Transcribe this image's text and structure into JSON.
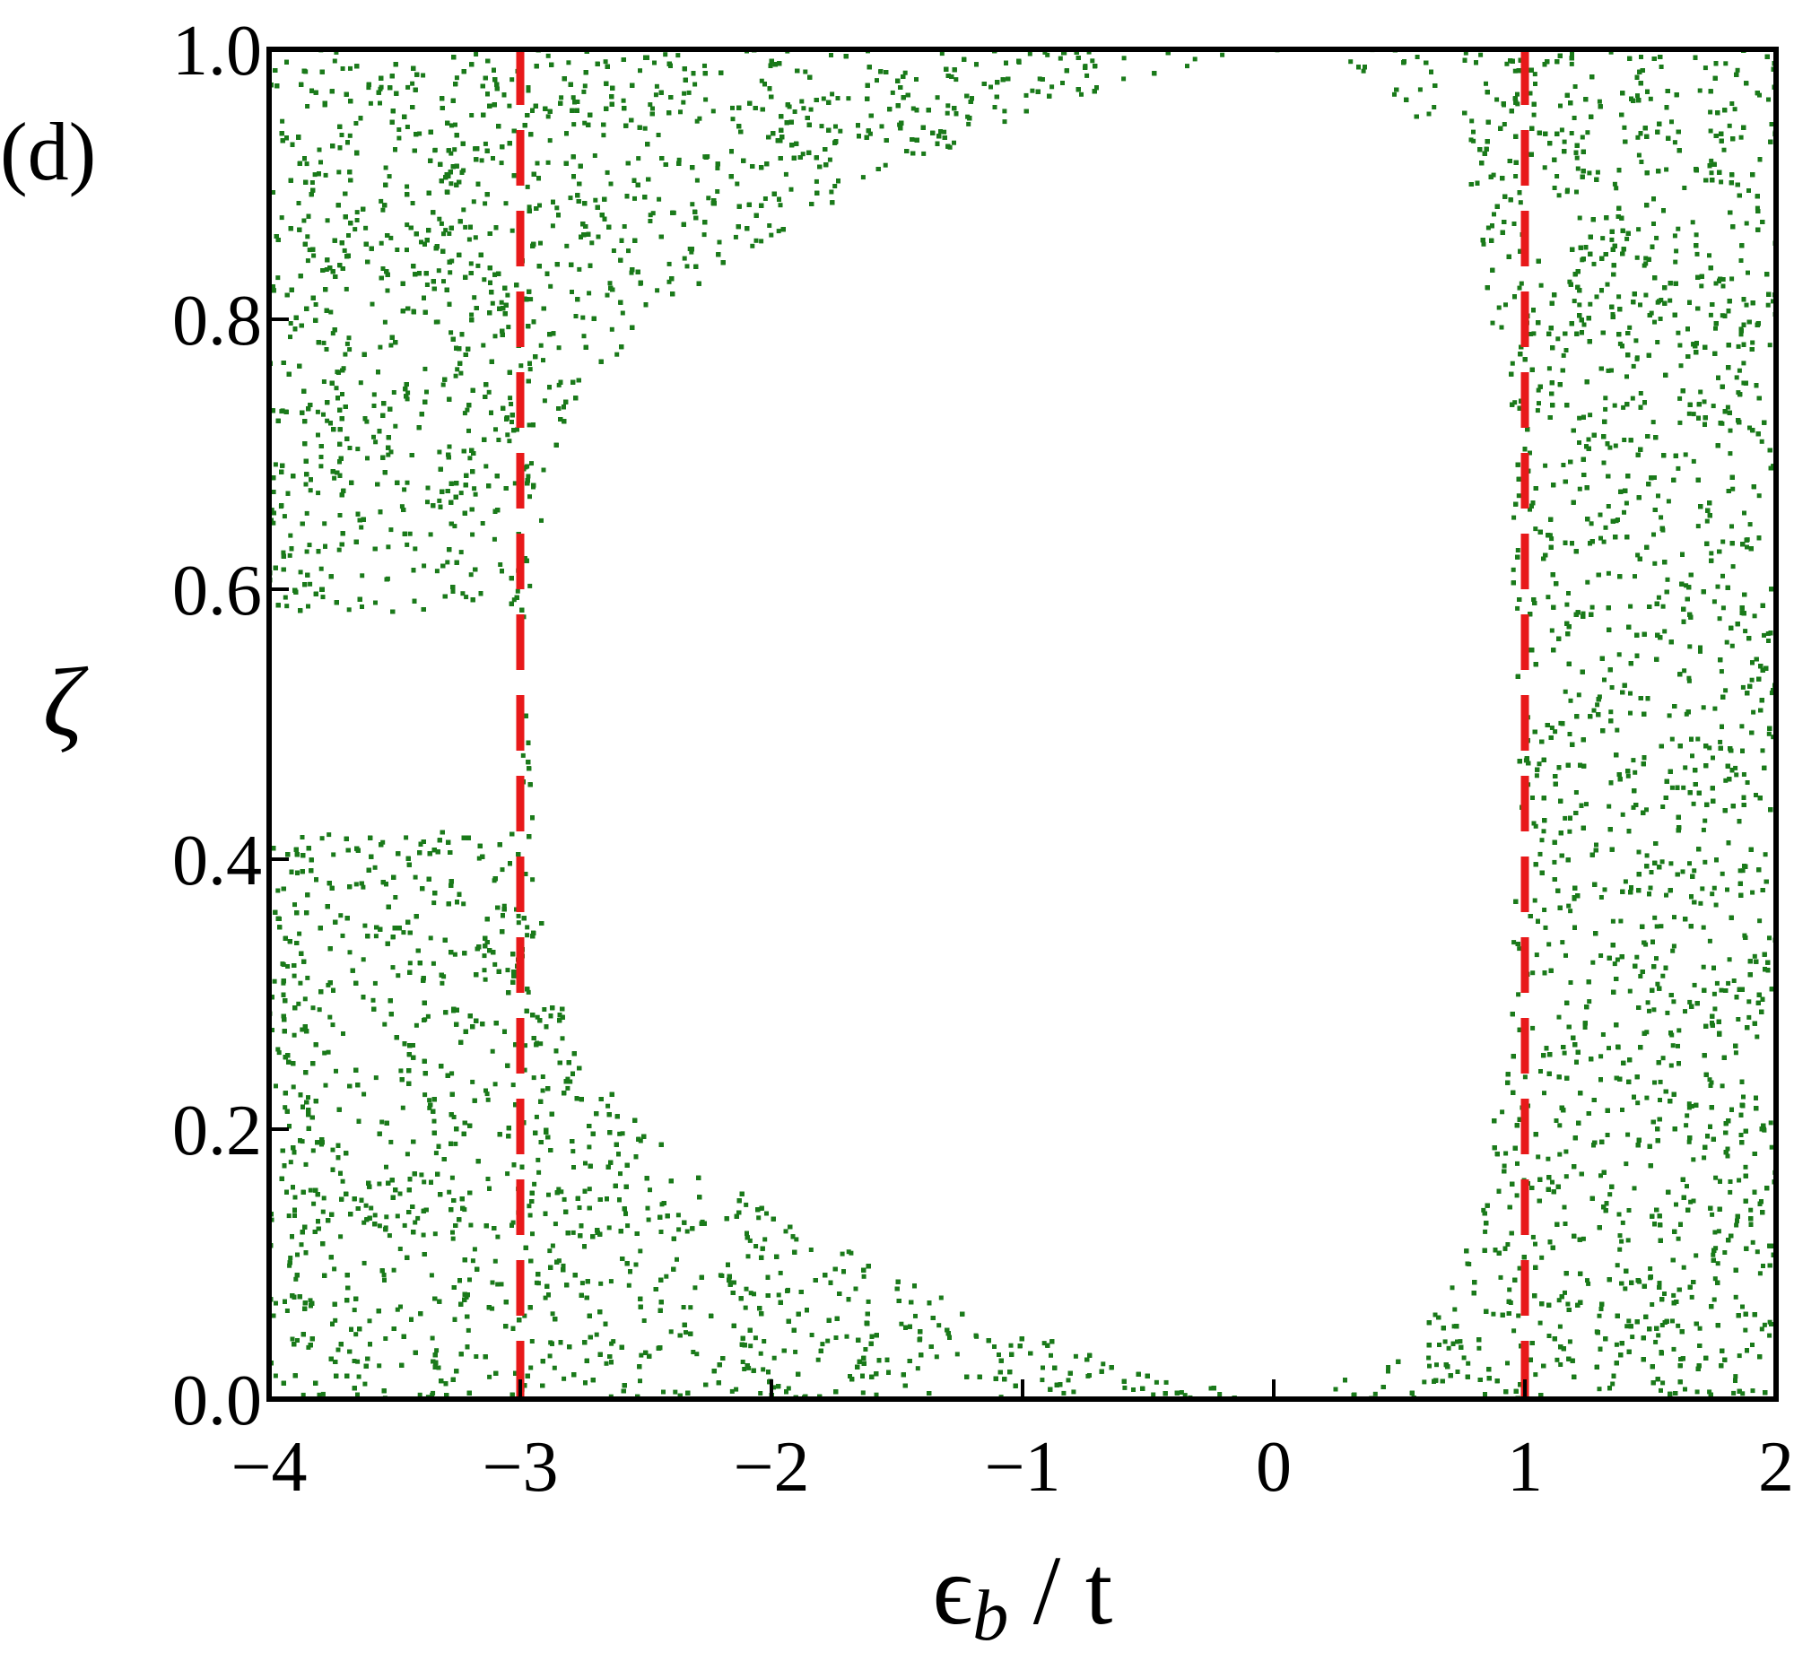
{
  "chart_data": {
    "type": "scatter",
    "panel_label": "(d)",
    "xlabel": {
      "symbol": "ϵ",
      "subscript": "b",
      "rest": " / t"
    },
    "ylabel": "ζ",
    "xlim": [
      -4,
      2
    ],
    "ylim": [
      0,
      1
    ],
    "x_ticks": [
      -4,
      -3,
      -2,
      -1,
      0,
      1,
      2
    ],
    "x_tick_labels": [
      "−4",
      "−3",
      "−2",
      "−1",
      "0",
      "1",
      "2"
    ],
    "y_ticks": [
      0.0,
      0.2,
      0.4,
      0.6,
      0.8,
      1.0
    ],
    "y_tick_labels": [
      "0.0",
      "0.2",
      "0.4",
      "0.6",
      "0.8",
      "1.0"
    ],
    "grid": false,
    "colors": {
      "points": "#1a7a1a",
      "reference_lines": "#e8191a",
      "frame": "#000000"
    },
    "reference_lines": [
      {
        "axis": "x",
        "value": -3,
        "style": "dashed"
      },
      {
        "axis": "x",
        "value": 1,
        "style": "dashed"
      }
    ],
    "series": [
      {
        "marker": "dot",
        "description_of_distribution": [
          {
            "x_range": [
              -4,
              -3
            ],
            "dense_y_ranges": [
              [
                0,
                0.42
              ],
              [
                0.58,
                1.0
              ]
            ],
            "empty_y_range": [
              0.42,
              0.58
            ]
          },
          {
            "x_range": [
              -3,
              1
            ],
            "white_lobe_boundary": [
              {
                "x": -2.95,
                "y_low": 0.38,
                "y_high": 0.62
              },
              {
                "x": -2.8,
                "y_low": 0.27,
                "y_high": 0.73
              },
              {
                "x": -2.5,
                "y_low": 0.2,
                "y_high": 0.8
              },
              {
                "x": -2.0,
                "y_low": 0.14,
                "y_high": 0.86
              },
              {
                "x": -1.5,
                "y_low": 0.09,
                "y_high": 0.91
              },
              {
                "x": -1.0,
                "y_low": 0.05,
                "y_high": 0.95
              },
              {
                "x": -0.5,
                "y_low": 0.02,
                "y_high": 0.98
              },
              {
                "x": 0.0,
                "y_low": 0.0,
                "y_high": 1.0
              },
              {
                "x": 0.4,
                "y_low": 0.02,
                "y_high": 0.98
              },
              {
                "x": 0.7,
                "y_low": 0.08,
                "y_high": 0.92
              },
              {
                "x": 0.85,
                "y_low": 0.18,
                "y_high": 0.82
              },
              {
                "x": 0.95,
                "y_low": 0.3,
                "y_high": 0.7
              }
            ]
          },
          {
            "x_range": [
              1,
              2
            ],
            "dense_y_ranges": [
              [
                0,
                1.0
              ]
            ]
          }
        ]
      }
    ]
  }
}
